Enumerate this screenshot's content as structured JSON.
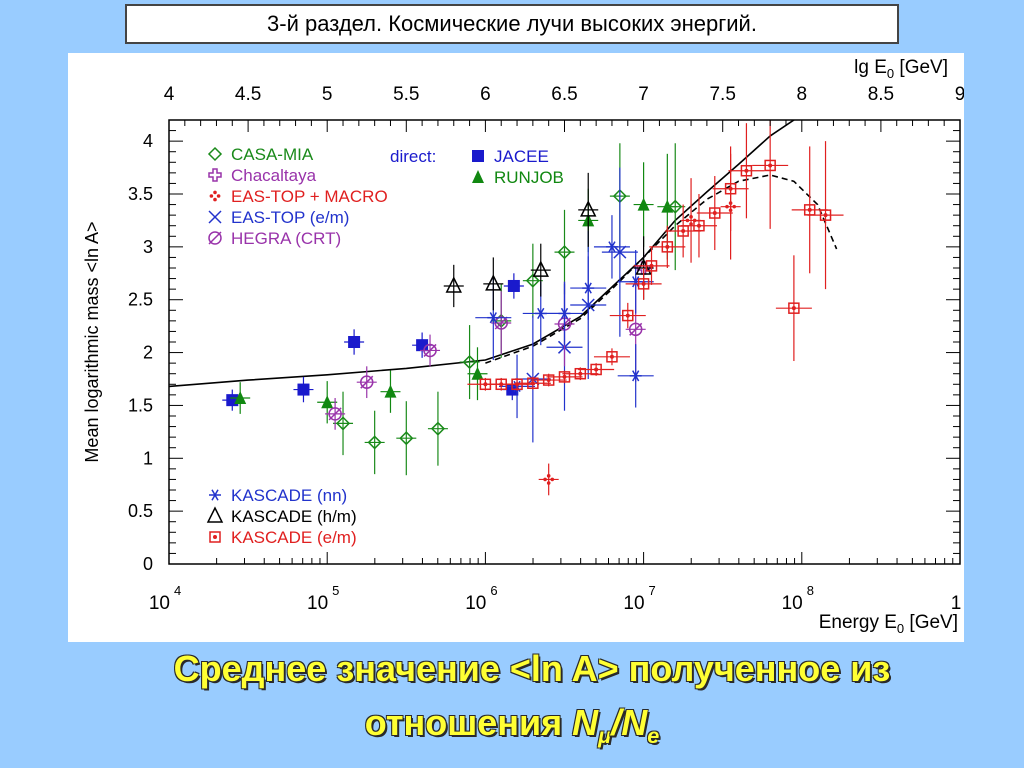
{
  "slide_title": "3-й раздел. Космические лучи высоких энергий.",
  "caption": {
    "line1": "Среднее значение <ln A> полученное из",
    "line2_prefix": "отношения ",
    "n_mu_letter": "N",
    "mu_sub": "μ",
    "slash": "/",
    "n_e_letter": "N",
    "e_sub": "e"
  },
  "chart_data": {
    "type": "scatter",
    "xlabel": "Energy E",
    "xlabel_sub": "0",
    "xlabel_unit": " [GeV]",
    "top_axis_label": "lg E",
    "top_axis_sub": "0",
    "top_axis_unit": " [GeV]",
    "ylabel": "Mean logarithmic mass <ln A>",
    "x_scale": "log",
    "xlim": [
      10000,
      1000000000
    ],
    "ylim": [
      0,
      4.2
    ],
    "bottom_ticks": [
      {
        "base": "10",
        "exp": "4"
      },
      {
        "base": "10",
        "exp": "5"
      },
      {
        "base": "10",
        "exp": "6"
      },
      {
        "base": "10",
        "exp": "7"
      },
      {
        "base": "10",
        "exp": "8"
      },
      {
        "base": "1",
        "exp": ""
      }
    ],
    "top_ticks": [
      "4",
      "4.5",
      "5",
      "5.5",
      "6",
      "6.5",
      "7",
      "7.5",
      "8",
      "8.5",
      "9"
    ],
    "y_ticks": [
      "0",
      "0.5",
      "1",
      "1.5",
      "2",
      "2.5",
      "3",
      "3.5",
      "4"
    ],
    "legend_direct_label": "direct:",
    "legend_top_left": [
      {
        "key": "casa",
        "symbol": "✧",
        "label": "CASA-MIA",
        "color": "#1a8a1a"
      },
      {
        "key": "chacaltaya",
        "symbol": "✣",
        "label": "Chacaltaya",
        "color": "#9933aa"
      },
      {
        "key": "eastop_macro",
        "symbol": "✢",
        "label": "EAS-TOP + MACRO",
        "color": "#e02020"
      },
      {
        "key": "eastop_em",
        "symbol": "✕",
        "label": "EAS-TOP (e/m)",
        "color": "#2233cc"
      },
      {
        "key": "hegra",
        "symbol": "∅",
        "label": "HEGRA (CRT)",
        "color": "#9933aa"
      }
    ],
    "legend_direct": [
      {
        "key": "jacee",
        "symbol": "■",
        "label": "JACEE",
        "color": "#1a1acc"
      },
      {
        "key": "runjob",
        "symbol": "▲",
        "label": "RUNJOB",
        "color": "#118811"
      }
    ],
    "legend_bottom_left": [
      {
        "key": "kascade_nn",
        "symbol": "❄",
        "label": "KASCADE (nn)",
        "color": "#2233cc"
      },
      {
        "key": "kascade_hm",
        "symbol": "△",
        "label": "KASCADE (h/m)",
        "color": "#000000"
      },
      {
        "key": "kascade_em",
        "symbol": "◘",
        "label": "KASCADE (e/m)",
        "color": "#e02020"
      }
    ],
    "series": [
      {
        "name": "JACEE",
        "key": "jacee",
        "color": "#1a1acc",
        "points": [
          [
            4.4,
            1.55,
            0.1
          ],
          [
            4.85,
            1.65,
            0.12
          ],
          [
            5.17,
            2.1,
            0.12
          ],
          [
            5.6,
            2.07,
            0.12
          ],
          [
            6.17,
            1.65,
            0.1
          ],
          [
            6.18,
            2.63,
            0.12
          ]
        ]
      },
      {
        "name": "RUNJOB",
        "key": "runjob",
        "color": "#118811",
        "points": [
          [
            4.45,
            1.57,
            0.15
          ],
          [
            5.0,
            1.53,
            0.2
          ],
          [
            5.4,
            1.63,
            0.2
          ],
          [
            5.95,
            1.8,
            0.25
          ],
          [
            6.65,
            3.25,
            0.3
          ],
          [
            7.0,
            3.4,
            0.4
          ],
          [
            7.15,
            3.38,
            0.5
          ]
        ]
      },
      {
        "name": "CASA-MIA",
        "key": "casa",
        "color": "#1a8a1a",
        "points": [
          [
            5.1,
            1.33,
            0.3
          ],
          [
            5.3,
            1.15,
            0.3
          ],
          [
            5.5,
            1.19,
            0.35
          ],
          [
            5.7,
            1.28,
            0.35
          ],
          [
            5.9,
            1.91,
            0.35
          ],
          [
            6.1,
            2.3,
            0.35
          ],
          [
            6.3,
            2.68,
            0.35
          ],
          [
            6.5,
            2.95,
            0.4
          ],
          [
            6.85,
            3.48,
            0.5
          ],
          [
            7.2,
            3.38,
            0.6
          ]
        ]
      },
      {
        "name": "Chacaltaya",
        "key": "chacaltaya",
        "color": "#9933aa",
        "points": [
          [
            7.0,
            2.8,
            0.15
          ]
        ]
      },
      {
        "name": "EAS-TOP + MACRO",
        "key": "eastop_macro",
        "color": "#e02020",
        "points": [
          [
            6.4,
            0.8,
            0.15
          ],
          [
            7.3,
            3.25,
            0.4
          ],
          [
            7.55,
            3.38,
            0.5
          ]
        ]
      },
      {
        "name": "EAS-TOP (e/m)",
        "key": "eastop_em",
        "color": "#2233cc",
        "points": [
          [
            6.3,
            1.75,
            0.6
          ],
          [
            6.5,
            2.05,
            0.6
          ],
          [
            6.65,
            2.45,
            0.7
          ],
          [
            6.85,
            2.95,
            0.8
          ]
        ]
      },
      {
        "name": "HEGRA (CRT)",
        "key": "hegra",
        "color": "#9933aa",
        "points": [
          [
            5.05,
            1.42,
            0.15
          ],
          [
            5.25,
            1.72,
            0.15
          ],
          [
            5.65,
            2.02,
            0.15
          ],
          [
            6.1,
            2.28,
            0.3
          ],
          [
            6.5,
            2.27,
            0.4
          ],
          [
            6.95,
            2.22,
            0.5
          ]
        ]
      },
      {
        "name": "KASCADE (nn)",
        "key": "kascade_nn",
        "color": "#2233cc",
        "points": [
          [
            6.05,
            2.33,
            0.4
          ],
          [
            6.2,
            1.68,
            0.3
          ],
          [
            6.35,
            2.37,
            0.3
          ],
          [
            6.5,
            2.37,
            0.3
          ],
          [
            6.65,
            2.61,
            0.3
          ],
          [
            6.8,
            3.0,
            0.3
          ],
          [
            6.95,
            1.78,
            0.3
          ],
          [
            6.95,
            2.67,
            0.3
          ]
        ]
      },
      {
        "name": "KASCADE (h/m)",
        "key": "kascade_hm",
        "color": "#000000",
        "points": [
          [
            5.8,
            2.63,
            0.2
          ],
          [
            6.05,
            2.65,
            0.25
          ],
          [
            6.35,
            2.78,
            0.25
          ],
          [
            6.65,
            3.35,
            0.35
          ],
          [
            7.0,
            2.8,
            0.3
          ]
        ]
      },
      {
        "name": "KASCADE (e/m)",
        "key": "kascade_em",
        "color": "#e02020",
        "points": [
          [
            6.0,
            1.7,
            0.06
          ],
          [
            6.1,
            1.7,
            0.06
          ],
          [
            6.2,
            1.7,
            0.06
          ],
          [
            6.3,
            1.71,
            0.06
          ],
          [
            6.4,
            1.74,
            0.06
          ],
          [
            6.5,
            1.77,
            0.06
          ],
          [
            6.6,
            1.8,
            0.06
          ],
          [
            6.7,
            1.84,
            0.06
          ],
          [
            6.8,
            1.96,
            0.08
          ],
          [
            6.9,
            2.35,
            0.12
          ],
          [
            7.0,
            2.65,
            0.15
          ],
          [
            7.05,
            2.82,
            0.18
          ],
          [
            7.15,
            3.0,
            0.2
          ],
          [
            7.25,
            3.15,
            0.25
          ],
          [
            7.35,
            3.2,
            0.3
          ],
          [
            7.45,
            3.32,
            0.35
          ],
          [
            7.55,
            3.55,
            0.4
          ],
          [
            7.65,
            3.72,
            0.45
          ],
          [
            7.8,
            3.77,
            0.6
          ],
          [
            7.95,
            2.42,
            0.5
          ],
          [
            8.05,
            3.35,
            0.6
          ],
          [
            8.15,
            3.3,
            0.7
          ]
        ]
      }
    ],
    "model_curves": [
      {
        "style": "solid",
        "points": [
          [
            4.0,
            1.68
          ],
          [
            4.5,
            1.74
          ],
          [
            5.0,
            1.79
          ],
          [
            5.5,
            1.85
          ],
          [
            6.0,
            1.93
          ],
          [
            6.3,
            2.08
          ],
          [
            6.6,
            2.34
          ],
          [
            6.8,
            2.62
          ],
          [
            7.0,
            2.9
          ],
          [
            7.2,
            3.25
          ],
          [
            7.4,
            3.52
          ],
          [
            7.6,
            3.78
          ],
          [
            7.8,
            4.05
          ],
          [
            8.0,
            4.25
          ]
        ]
      },
      {
        "style": "dashed",
        "points": [
          [
            6.0,
            1.9
          ],
          [
            6.3,
            2.06
          ],
          [
            6.6,
            2.32
          ],
          [
            6.8,
            2.6
          ],
          [
            7.0,
            2.9
          ],
          [
            7.2,
            3.2
          ],
          [
            7.4,
            3.45
          ],
          [
            7.6,
            3.62
          ],
          [
            7.8,
            3.68
          ],
          [
            7.95,
            3.62
          ],
          [
            8.1,
            3.4
          ],
          [
            8.22,
            2.98
          ]
        ]
      }
    ]
  }
}
